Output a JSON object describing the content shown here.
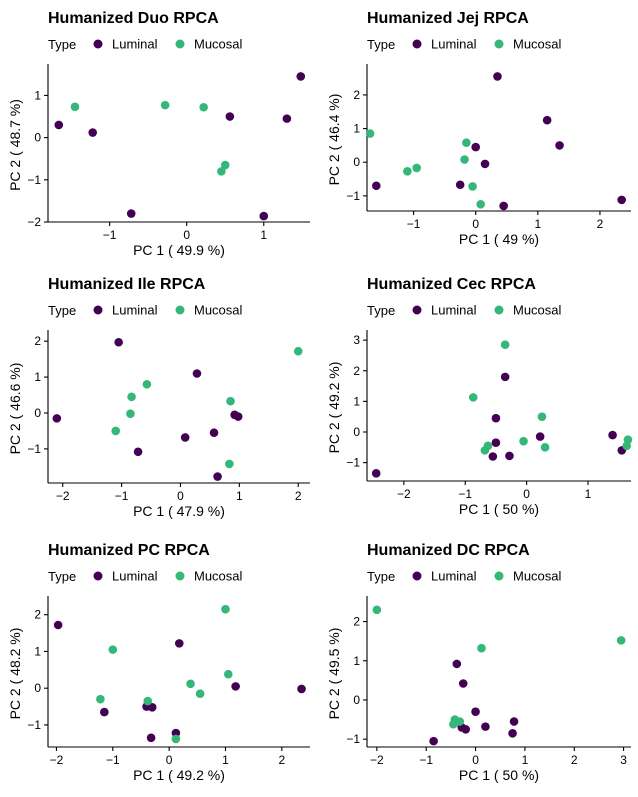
{
  "legend": {
    "title": "Type",
    "items": [
      {
        "label": "Luminal",
        "color": "#440154"
      },
      {
        "label": "Mucosal",
        "color": "#35b779"
      }
    ]
  },
  "chart_data": [
    {
      "type": "scatter",
      "title": "Humanized Duo RPCA",
      "xlabel": "PC 1 ( 49.9 %)",
      "ylabel": "PC 2 ( 48.7 %)",
      "xlim": [
        -1.8,
        1.6
      ],
      "ylim": [
        -2.0,
        1.65
      ],
      "xticks": [
        -1,
        0,
        1
      ],
      "yticks": [
        -2,
        -1,
        0,
        1
      ],
      "series": [
        {
          "name": "Luminal",
          "color": "#440154",
          "points": [
            [
              -1.66,
              0.3
            ],
            [
              -1.22,
              0.12
            ],
            [
              -0.72,
              -1.8
            ],
            [
              0.56,
              0.5
            ],
            [
              1.0,
              -1.86
            ],
            [
              1.3,
              0.45
            ],
            [
              1.48,
              1.45
            ]
          ]
        },
        {
          "name": "Mucosal",
          "color": "#35b779",
          "points": [
            [
              -1.45,
              0.73
            ],
            [
              -0.28,
              0.77
            ],
            [
              0.22,
              0.72
            ],
            [
              0.5,
              -0.65
            ],
            [
              0.45,
              -0.8
            ]
          ]
        }
      ]
    },
    {
      "type": "scatter",
      "title": "Humanized Jej RPCA",
      "xlabel": "PC 1 ( 49 %)",
      "ylabel": "PC 2 ( 46.4 %)",
      "xlim": [
        -1.75,
        2.5
      ],
      "ylim": [
        -1.45,
        2.8
      ],
      "xticks": [
        -1,
        0,
        1,
        2
      ],
      "yticks": [
        -1,
        0,
        1,
        2
      ],
      "series": [
        {
          "name": "Luminal",
          "color": "#440154",
          "points": [
            [
              -1.6,
              -0.7
            ],
            [
              -0.25,
              -0.67
            ],
            [
              0.0,
              0.45
            ],
            [
              0.15,
              -0.05
            ],
            [
              0.35,
              2.55
            ],
            [
              0.45,
              -1.3
            ],
            [
              1.15,
              1.25
            ],
            [
              1.35,
              0.5
            ],
            [
              2.35,
              -1.12
            ]
          ]
        },
        {
          "name": "Mucosal",
          "color": "#35b779",
          "points": [
            [
              -1.7,
              0.85
            ],
            [
              -1.1,
              -0.27
            ],
            [
              -0.95,
              -0.17
            ],
            [
              -0.15,
              0.58
            ],
            [
              -0.18,
              0.08
            ],
            [
              -0.05,
              -0.72
            ],
            [
              0.08,
              -1.25
            ]
          ]
        }
      ]
    },
    {
      "type": "scatter",
      "title": "Humanized Ile RPCA",
      "xlabel": "PC 1 ( 47.9 %)",
      "ylabel": "PC 2 ( 46.6 %)",
      "xlim": [
        -2.25,
        2.2
      ],
      "ylim": [
        -1.95,
        2.2
      ],
      "xticks": [
        -2,
        -1,
        0,
        1,
        2
      ],
      "yticks": [
        -1,
        0,
        1,
        2
      ],
      "series": [
        {
          "name": "Luminal",
          "color": "#440154",
          "points": [
            [
              -2.1,
              -0.15
            ],
            [
              -1.05,
              1.97
            ],
            [
              -0.72,
              -1.08
            ],
            [
              0.08,
              -0.68
            ],
            [
              0.28,
              1.1
            ],
            [
              0.57,
              -0.55
            ],
            [
              0.63,
              -1.77
            ],
            [
              0.92,
              -0.05
            ],
            [
              0.98,
              -0.1
            ]
          ]
        },
        {
          "name": "Mucosal",
          "color": "#35b779",
          "points": [
            [
              -1.1,
              -0.5
            ],
            [
              -0.83,
              0.45
            ],
            [
              -0.85,
              -0.02
            ],
            [
              -0.57,
              0.8
            ],
            [
              0.85,
              0.33
            ],
            [
              0.83,
              -1.42
            ],
            [
              2.0,
              1.72
            ]
          ]
        }
      ]
    },
    {
      "type": "scatter",
      "title": "Humanized Cec RPCA",
      "xlabel": "PC 1 ( 50 %)",
      "ylabel": "PC 2 ( 49.2 %)",
      "xlim": [
        -2.6,
        1.7
      ],
      "ylim": [
        -1.6,
        3.2
      ],
      "xticks": [
        -2,
        -1,
        0,
        1
      ],
      "yticks": [
        -1,
        0,
        1,
        2,
        3
      ],
      "series": [
        {
          "name": "Luminal",
          "color": "#440154",
          "points": [
            [
              -2.45,
              -1.35
            ],
            [
              -0.5,
              0.45
            ],
            [
              -0.5,
              -0.35
            ],
            [
              -0.55,
              -0.8
            ],
            [
              -0.35,
              1.8
            ],
            [
              -0.28,
              -0.78
            ],
            [
              0.22,
              -0.15
            ],
            [
              1.4,
              -0.1
            ],
            [
              1.55,
              -0.6
            ]
          ]
        },
        {
          "name": "Mucosal",
          "color": "#35b779",
          "points": [
            [
              -0.87,
              1.13
            ],
            [
              -0.68,
              -0.6
            ],
            [
              -0.63,
              -0.45
            ],
            [
              -0.35,
              2.85
            ],
            [
              -0.05,
              -0.3
            ],
            [
              0.25,
              0.5
            ],
            [
              0.3,
              -0.5
            ],
            [
              1.65,
              -0.25
            ],
            [
              1.63,
              -0.45
            ]
          ]
        }
      ]
    },
    {
      "type": "scatter",
      "title": "Humanized PC RPCA",
      "xlabel": "PC 1 ( 49.2 %)",
      "ylabel": "PC 2 ( 48.2 %)",
      "xlim": [
        -2.15,
        2.5
      ],
      "ylim": [
        -1.6,
        2.4
      ],
      "xticks": [
        -2,
        -1,
        0,
        1,
        2
      ],
      "yticks": [
        -1,
        0,
        1,
        2
      ],
      "series": [
        {
          "name": "Luminal",
          "color": "#440154",
          "points": [
            [
              -1.97,
              1.72
            ],
            [
              -1.15,
              -0.65
            ],
            [
              -0.4,
              -0.5
            ],
            [
              -0.32,
              -1.35
            ],
            [
              -0.3,
              -0.52
            ],
            [
              0.12,
              -1.22
            ],
            [
              0.18,
              1.22
            ],
            [
              1.18,
              0.05
            ],
            [
              2.35,
              -0.02
            ]
          ]
        },
        {
          "name": "Mucosal",
          "color": "#35b779",
          "points": [
            [
              -1.0,
              1.05
            ],
            [
              -1.22,
              -0.3
            ],
            [
              -0.38,
              -0.35
            ],
            [
              0.12,
              -1.38
            ],
            [
              0.38,
              0.12
            ],
            [
              0.55,
              -0.15
            ],
            [
              1.0,
              2.15
            ],
            [
              1.05,
              0.38
            ]
          ]
        }
      ]
    },
    {
      "type": "scatter",
      "title": "Humanized DC RPCA",
      "xlabel": "PC 1 ( 50 %)",
      "ylabel": "PC 2 ( 49.5 %)",
      "xlim": [
        -2.2,
        3.15
      ],
      "ylim": [
        -1.2,
        2.55
      ],
      "xticks": [
        -2,
        -1,
        0,
        1,
        2,
        3
      ],
      "yticks": [
        -1,
        0,
        1,
        2
      ],
      "series": [
        {
          "name": "Luminal",
          "color": "#440154",
          "points": [
            [
              -0.85,
              -1.05
            ],
            [
              -0.38,
              0.92
            ],
            [
              -0.25,
              0.42
            ],
            [
              -0.28,
              -0.7
            ],
            [
              -0.2,
              -0.75
            ],
            [
              0.0,
              -0.3
            ],
            [
              0.2,
              -0.68
            ],
            [
              0.78,
              -0.55
            ],
            [
              0.75,
              -0.85
            ]
          ]
        },
        {
          "name": "Mucosal",
          "color": "#35b779",
          "points": [
            [
              -2.0,
              2.3
            ],
            [
              -0.45,
              -0.62
            ],
            [
              -0.42,
              -0.5
            ],
            [
              -0.32,
              -0.55
            ],
            [
              0.12,
              1.32
            ],
            [
              2.95,
              1.52
            ]
          ]
        }
      ]
    }
  ]
}
